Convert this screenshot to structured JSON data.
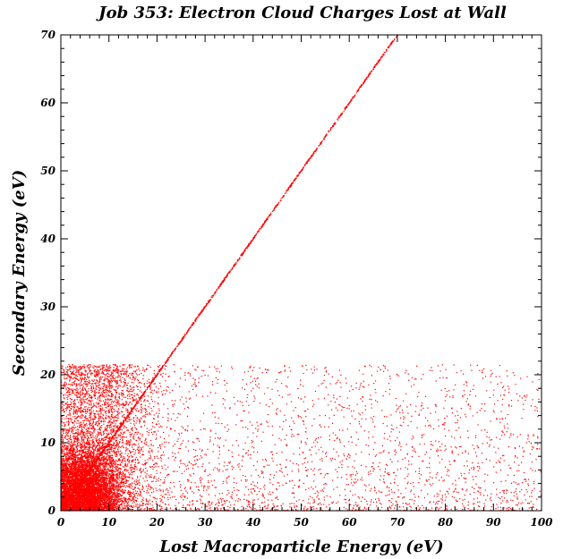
{
  "chart_data": {
    "type": "scatter",
    "title": "Job 353: Electron Cloud Charges Lost at Wall",
    "xlabel": "Lost Macroparticle Energy (eV)",
    "ylabel": "Secondary Energy (eV)",
    "xlim": [
      0,
      100
    ],
    "ylim": [
      0,
      70
    ],
    "x_ticks": [
      0,
      10,
      20,
      30,
      40,
      50,
      60,
      70,
      80,
      90,
      100
    ],
    "y_ticks": [
      0,
      10,
      20,
      30,
      40,
      50,
      60,
      70
    ],
    "x_minor_step": 2,
    "y_minor_step": 2,
    "grid": false,
    "legend": "none",
    "point_color": "#ff0000",
    "series": [
      {
        "description": "elastic branch: secondary energy equals lost energy",
        "x_range": [
          0,
          70
        ],
        "y_range": [
          0,
          70
        ],
        "relation": "y = x"
      },
      {
        "description": "true secondaries: energies 0–21 eV, dense below 15 eV lost energy, sparse tail to 100 eV",
        "x_range": [
          0,
          100
        ],
        "y_range": [
          0,
          21.5
        ]
      }
    ],
    "sample_points": [
      [
        2,
        2
      ],
      [
        5,
        5
      ],
      [
        10,
        10
      ],
      [
        15,
        15
      ],
      [
        20,
        20
      ],
      [
        25,
        25
      ],
      [
        30,
        30
      ],
      [
        35,
        35
      ],
      [
        40,
        40
      ],
      [
        45,
        45
      ],
      [
        50,
        50
      ],
      [
        55,
        55
      ],
      [
        60,
        60
      ],
      [
        65,
        65
      ],
      [
        70,
        70
      ],
      [
        3,
        4
      ],
      [
        5,
        8
      ],
      [
        6,
        3
      ],
      [
        8,
        12
      ],
      [
        4,
        18
      ],
      [
        10,
        6
      ],
      [
        12,
        15
      ],
      [
        15,
        2
      ],
      [
        20,
        8
      ],
      [
        25,
        3
      ],
      [
        30,
        12
      ],
      [
        35,
        5
      ],
      [
        40,
        18
      ],
      [
        45,
        2
      ],
      [
        50,
        10
      ],
      [
        55,
        4
      ],
      [
        60,
        15
      ],
      [
        65,
        7
      ],
      [
        70,
        20
      ],
      [
        75,
        3
      ],
      [
        80,
        11
      ],
      [
        85,
        6
      ],
      [
        90,
        17
      ],
      [
        95,
        2
      ],
      [
        98,
        9
      ]
    ]
  }
}
